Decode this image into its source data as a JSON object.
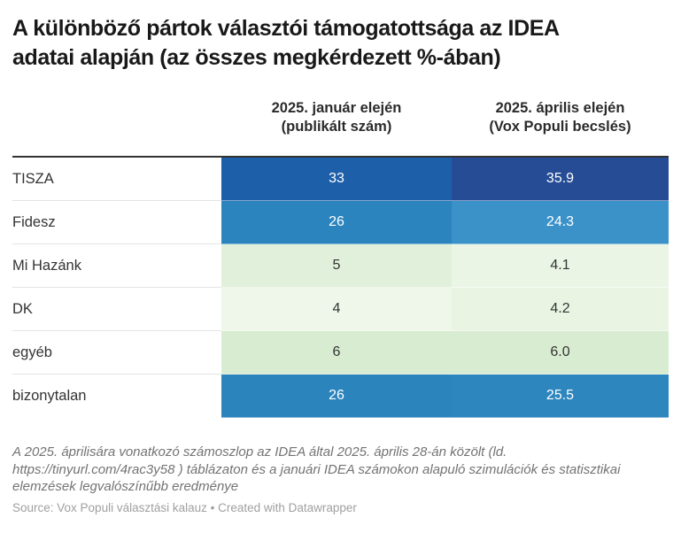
{
  "title": {
    "full": "A különböző pártok választói támogatottsága az IDEA adatai alapján (az összes megkérdezett %-ában)",
    "line1": "A különböző pártok választói támogatottsága az IDEA",
    "line2": "adatai alapján (az összes megkérdezett %-ában)"
  },
  "table": {
    "columns": [
      {
        "line1": "2025. január elején",
        "line2": "(publikált szám)"
      },
      {
        "line1": "2025. április elején",
        "line2": "(Vox Populi becslés)"
      }
    ],
    "rows": [
      {
        "party": "TISZA",
        "jan": "33",
        "apr": "35.9",
        "jan_bg": "#1d5fa8",
        "apr_bg": "#264c95",
        "jan_fg": "#ffffff",
        "apr_fg": "#ffffff"
      },
      {
        "party": "Fidesz",
        "jan": "26",
        "apr": "24.3",
        "jan_bg": "#2b84bd",
        "apr_bg": "#3a92c8",
        "jan_fg": "#ffffff",
        "apr_fg": "#ffffff"
      },
      {
        "party": "Mi Hazánk",
        "jan": "5",
        "apr": "4.1",
        "jan_bg": "#e1f0da",
        "apr_bg": "#ebf5e6",
        "jan_fg": "#333333",
        "apr_fg": "#333333"
      },
      {
        "party": "DK",
        "jan": "4",
        "apr": "4.2",
        "jan_bg": "#eef7e9",
        "apr_bg": "#e9f4e3",
        "jan_fg": "#333333",
        "apr_fg": "#333333"
      },
      {
        "party": "egyéb",
        "jan": "6",
        "apr": "6.0",
        "jan_bg": "#d8ecd1",
        "apr_bg": "#d8ecd1",
        "jan_fg": "#333333",
        "apr_fg": "#333333"
      },
      {
        "party": "bizonytalan",
        "jan": "26",
        "apr": "25.5",
        "jan_bg": "#2b84bc",
        "apr_bg": "#2d86be",
        "jan_fg": "#ffffff",
        "apr_fg": "#ffffff"
      }
    ]
  },
  "notes": "A 2025. áprilisára vonatkozó számoszlop az IDEA által 2025. április 28-án közölt (ld. https://tinyurl.com/4rac3y58 ) táblázaton és a januári IDEA számokon alapuló szimulációk és statisztikai elemzések legvalószínűbb eredménye",
  "source": "Source: Vox Populi választási kalauz • Created with Datawrapper",
  "chart_data": {
    "type": "table",
    "title": "A különböző pártok választói támogatottsága az IDEA adatai alapján (az összes megkérdezett %-ában)",
    "categories": [
      "TISZA",
      "Fidesz",
      "Mi Hazánk",
      "DK",
      "egyéb",
      "bizonytalan"
    ],
    "series": [
      {
        "name": "2025. január elején (publikált szám)",
        "values": [
          33,
          26,
          5,
          4,
          6,
          26
        ]
      },
      {
        "name": "2025. április elején (Vox Populi becslés)",
        "values": [
          35.9,
          24.3,
          4.1,
          4.2,
          6.0,
          25.5
        ]
      }
    ],
    "value_unit": "% of all respondents",
    "heatmap_colors": {
      "high": "#264c95",
      "mid": "#2b84bd",
      "low": "#eef7e9"
    },
    "legend_position": "none",
    "grid": "row-borders"
  }
}
